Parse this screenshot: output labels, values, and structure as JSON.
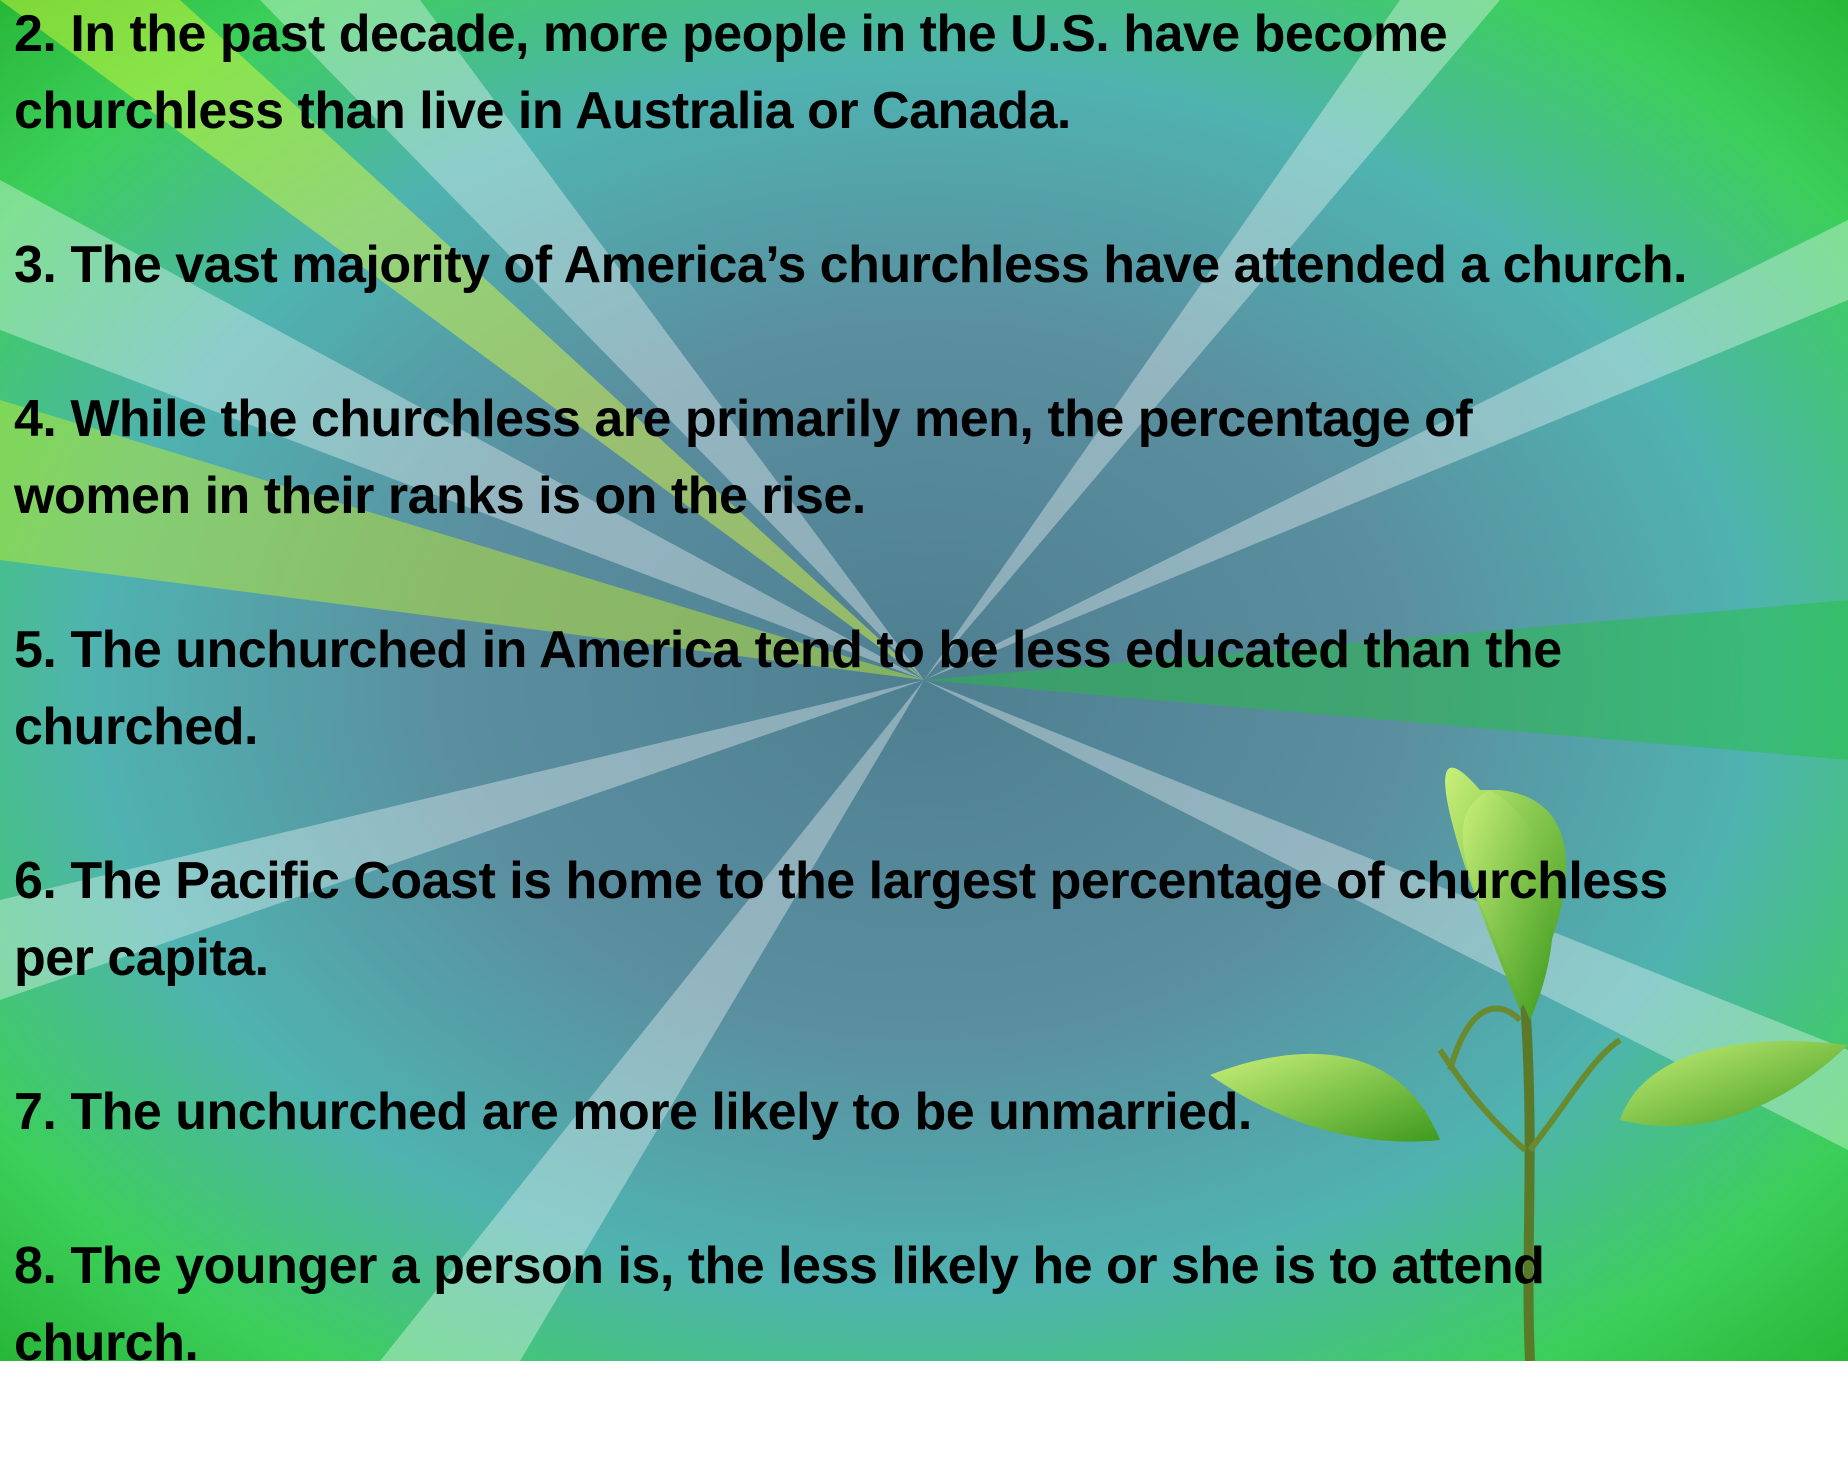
{
  "items": [
    {
      "lines": [
        "2. In the past decade, more people in the U.S. have become",
        "churchless than live in Australia or Canada."
      ]
    },
    {
      "lines": [
        "3. The vast majority of America’s churchless have attended a church."
      ]
    },
    {
      "lines": [
        "4. While the churchless are primarily men, the percentage of",
        "women in their ranks is on the rise."
      ]
    },
    {
      "lines": [
        "5. The unchurched in America tend to be less educated than the",
        "churched."
      ]
    },
    {
      "lines": [
        "6. The Pacific Coast is home to the largest percentage of churchless",
        "per capita."
      ]
    },
    {
      "lines": [
        "7. The unchurched are more likely to be unmarried."
      ]
    },
    {
      "lines": [
        "8. The younger a person is, the less likely he or she is to attend",
        "church."
      ]
    }
  ]
}
